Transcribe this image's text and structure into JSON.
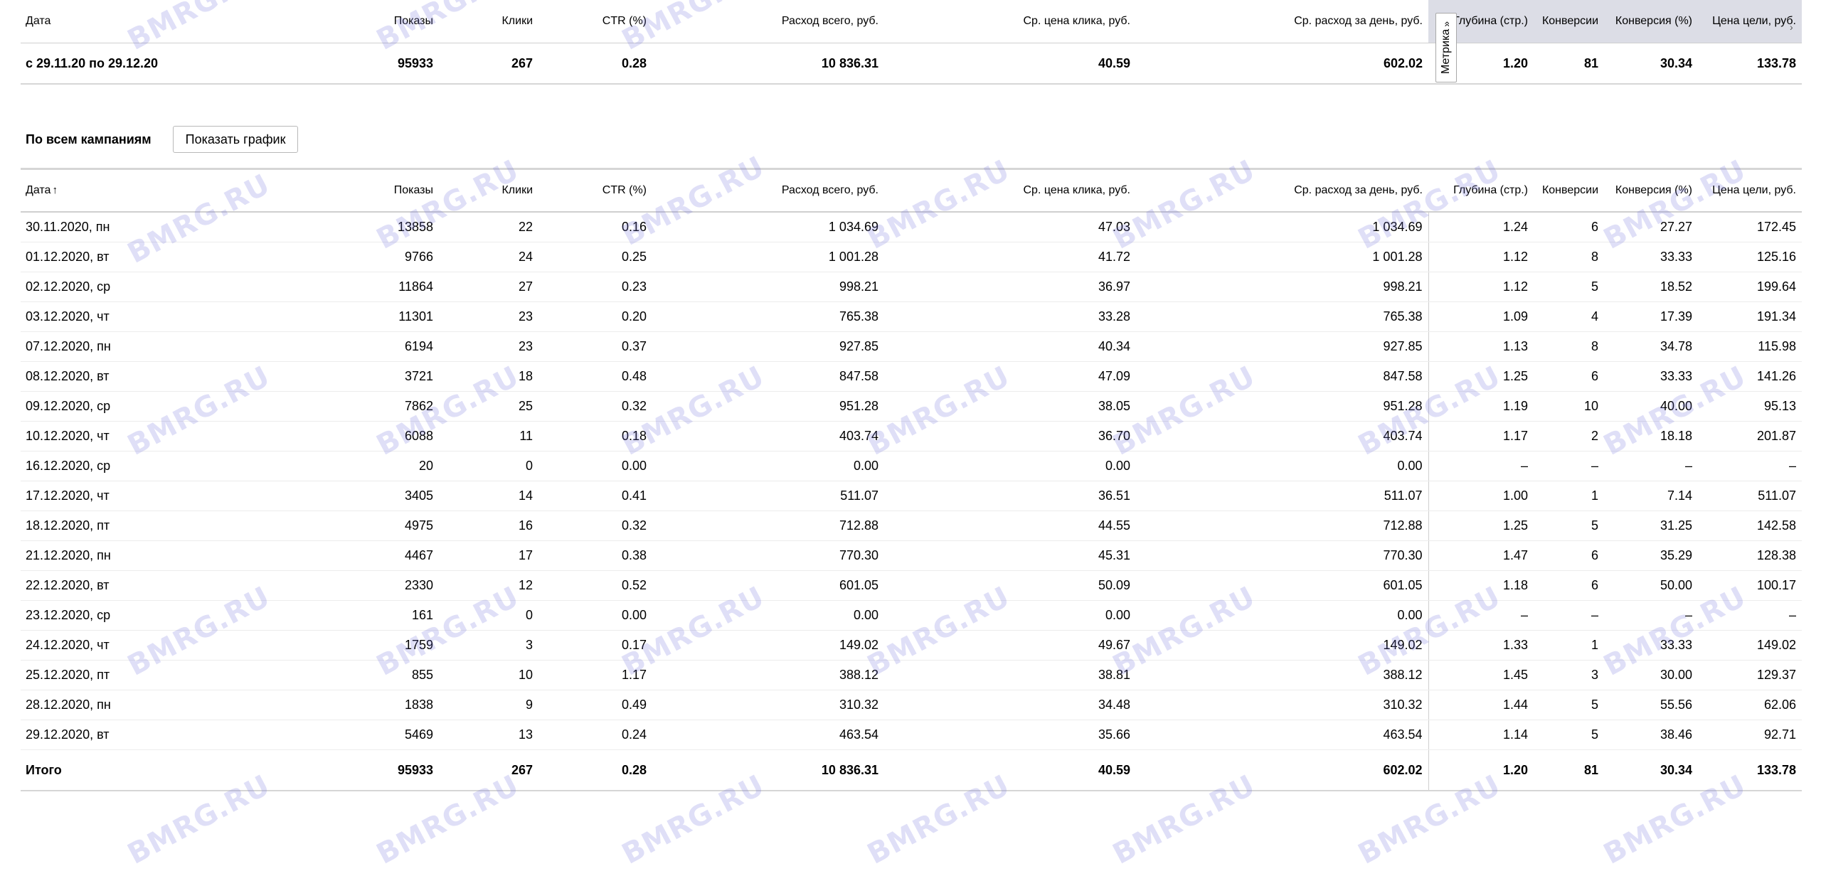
{
  "summary": {
    "headers": {
      "date": "Дата",
      "shows": "Показы",
      "clicks": "Клики",
      "ctr": "CTR (%)",
      "spend": "Расход всего, руб.",
      "cpc": "Ср. цена клика, руб.",
      "daily": "Ср. расход за день, руб.",
      "depth": "Глубина (стр.)",
      "conv": "Конверсии",
      "convp": "Конверсия (%)",
      "cpa": "Цена цели, руб."
    },
    "row": {
      "date": "с 29.11.20 по 29.12.20",
      "shows": "95933",
      "clicks": "267",
      "ctr": "0.28",
      "spend": "10 836.31",
      "cpc": "40.59",
      "daily": "602.02",
      "depth": "1.20",
      "conv": "81",
      "convp": "30.34",
      "cpa": "133.78"
    },
    "metrika_label": "Метрика",
    "metrika_icon": "chevron-double-right-icon",
    "metrika_color": "#dcdde6"
  },
  "campaigns": {
    "label": "По всем кампаниям",
    "show_chart_button": "Показать график"
  },
  "detail": {
    "headers": {
      "date": "Дата",
      "shows": "Показы",
      "clicks": "Клики",
      "ctr": "CTR (%)",
      "spend": "Расход всего, руб.",
      "cpc": "Ср. цена клика, руб.",
      "daily": "Ср. расход за день, руб.",
      "depth": "Глубина (стр.)",
      "conv": "Конверсии",
      "convp": "Конверсия (%)",
      "cpa": "Цена цели, руб."
    },
    "sort_icon": "arrow-up-icon",
    "rows": [
      [
        "30.11.2020, пн",
        "13858",
        "22",
        "0.16",
        "1 034.69",
        "47.03",
        "1 034.69",
        "1.24",
        "6",
        "27.27",
        "172.45"
      ],
      [
        "01.12.2020, вт",
        "9766",
        "24",
        "0.25",
        "1 001.28",
        "41.72",
        "1 001.28",
        "1.12",
        "8",
        "33.33",
        "125.16"
      ],
      [
        "02.12.2020, ср",
        "11864",
        "27",
        "0.23",
        "998.21",
        "36.97",
        "998.21",
        "1.12",
        "5",
        "18.52",
        "199.64"
      ],
      [
        "03.12.2020, чт",
        "11301",
        "23",
        "0.20",
        "765.38",
        "33.28",
        "765.38",
        "1.09",
        "4",
        "17.39",
        "191.34"
      ],
      [
        "07.12.2020, пн",
        "6194",
        "23",
        "0.37",
        "927.85",
        "40.34",
        "927.85",
        "1.13",
        "8",
        "34.78",
        "115.98"
      ],
      [
        "08.12.2020, вт",
        "3721",
        "18",
        "0.48",
        "847.58",
        "47.09",
        "847.58",
        "1.25",
        "6",
        "33.33",
        "141.26"
      ],
      [
        "09.12.2020, ср",
        "7862",
        "25",
        "0.32",
        "951.28",
        "38.05",
        "951.28",
        "1.19",
        "10",
        "40.00",
        "95.13"
      ],
      [
        "10.12.2020, чт",
        "6088",
        "11",
        "0.18",
        "403.74",
        "36.70",
        "403.74",
        "1.17",
        "2",
        "18.18",
        "201.87"
      ],
      [
        "16.12.2020, ср",
        "20",
        "0",
        "0.00",
        "0.00",
        "0.00",
        "0.00",
        "–",
        "–",
        "–",
        "–"
      ],
      [
        "17.12.2020, чт",
        "3405",
        "14",
        "0.41",
        "511.07",
        "36.51",
        "511.07",
        "1.00",
        "1",
        "7.14",
        "511.07"
      ],
      [
        "18.12.2020, пт",
        "4975",
        "16",
        "0.32",
        "712.88",
        "44.55",
        "712.88",
        "1.25",
        "5",
        "31.25",
        "142.58"
      ],
      [
        "21.12.2020, пн",
        "4467",
        "17",
        "0.38",
        "770.30",
        "45.31",
        "770.30",
        "1.47",
        "6",
        "35.29",
        "128.38"
      ],
      [
        "22.12.2020, вт",
        "2330",
        "12",
        "0.52",
        "601.05",
        "50.09",
        "601.05",
        "1.18",
        "6",
        "50.00",
        "100.17"
      ],
      [
        "23.12.2020, ср",
        "161",
        "0",
        "0.00",
        "0.00",
        "0.00",
        "0.00",
        "–",
        "–",
        "–",
        "–"
      ],
      [
        "24.12.2020, чт",
        "1759",
        "3",
        "0.17",
        "149.02",
        "49.67",
        "149.02",
        "1.33",
        "1",
        "33.33",
        "149.02"
      ],
      [
        "25.12.2020, пт",
        "855",
        "10",
        "1.17",
        "388.12",
        "38.81",
        "388.12",
        "1.45",
        "3",
        "30.00",
        "129.37"
      ],
      [
        "28.12.2020, пн",
        "1838",
        "9",
        "0.49",
        "310.32",
        "34.48",
        "310.32",
        "1.44",
        "5",
        "55.56",
        "62.06"
      ],
      [
        "29.12.2020, вт",
        "5469",
        "13",
        "0.24",
        "463.54",
        "35.66",
        "463.54",
        "1.14",
        "5",
        "38.46",
        "92.71"
      ]
    ],
    "total": {
      "date": "Итого",
      "shows": "95933",
      "clicks": "267",
      "ctr": "0.28",
      "spend": "10 836.31",
      "cpc": "40.59",
      "daily": "602.02",
      "depth": "1.20",
      "conv": "81",
      "convp": "30.34",
      "cpa": "133.78"
    }
  },
  "watermark": {
    "text": "BMRG.RU",
    "color": "#6e6edc"
  }
}
